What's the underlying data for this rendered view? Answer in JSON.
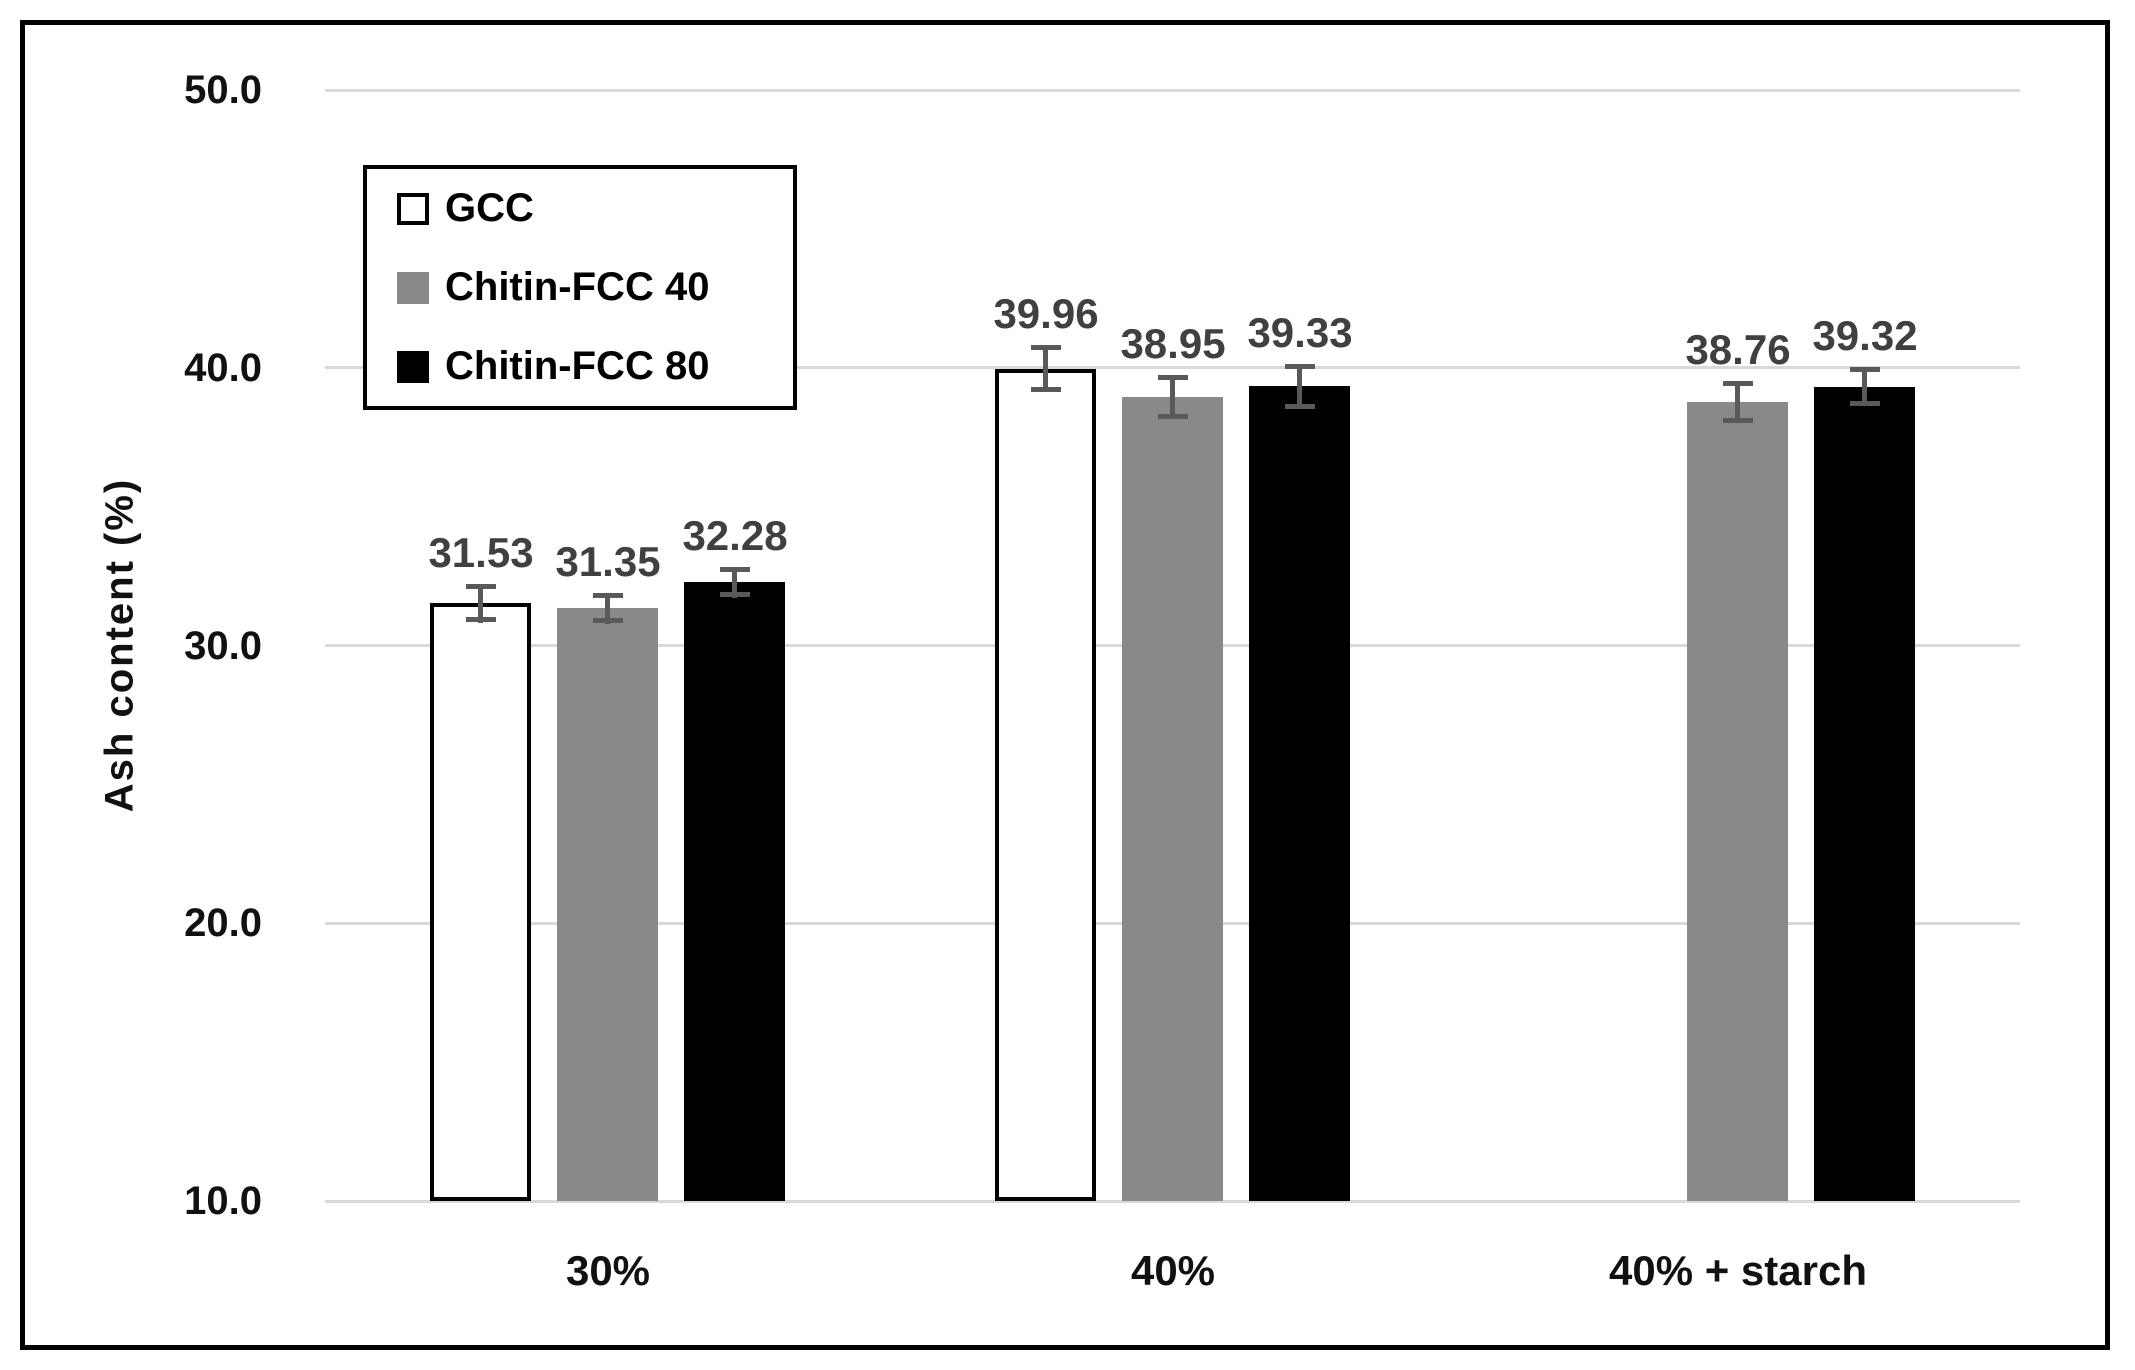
{
  "chart_data": {
    "type": "bar",
    "title": "",
    "ylabel": "Ash content (%)",
    "xlabel": "",
    "categories": [
      "30%",
      "40%",
      "40% + starch"
    ],
    "series": [
      {
        "name": "GCC",
        "fill": "#ffffff",
        "border": "#000000",
        "values": [
          31.53,
          39.96,
          null
        ],
        "errors": [
          0.7,
          0.85,
          null
        ]
      },
      {
        "name": "Chitin-FCC 40",
        "fill": "#898989",
        "border": null,
        "values": [
          31.35,
          38.95,
          38.76
        ],
        "errors": [
          0.55,
          0.8,
          0.75
        ]
      },
      {
        "name": "Chitin-FCC 80",
        "fill": "#000000",
        "border": null,
        "values": [
          32.28,
          39.33,
          39.32
        ],
        "errors": [
          0.55,
          0.8,
          0.7
        ]
      }
    ],
    "y_axis": {
      "min": 10,
      "max": 50,
      "step": 10,
      "ticks": [
        50.0,
        40.0,
        30.0,
        20.0,
        10.0
      ],
      "tick_decimals": 1
    },
    "data_label_decimals": 2,
    "grid": true,
    "legend_position": "top-left",
    "colors": {
      "gridline": "#d9d9d9",
      "error_bar": "#595959",
      "data_label": "#404040",
      "axis_text": "#111111"
    }
  }
}
